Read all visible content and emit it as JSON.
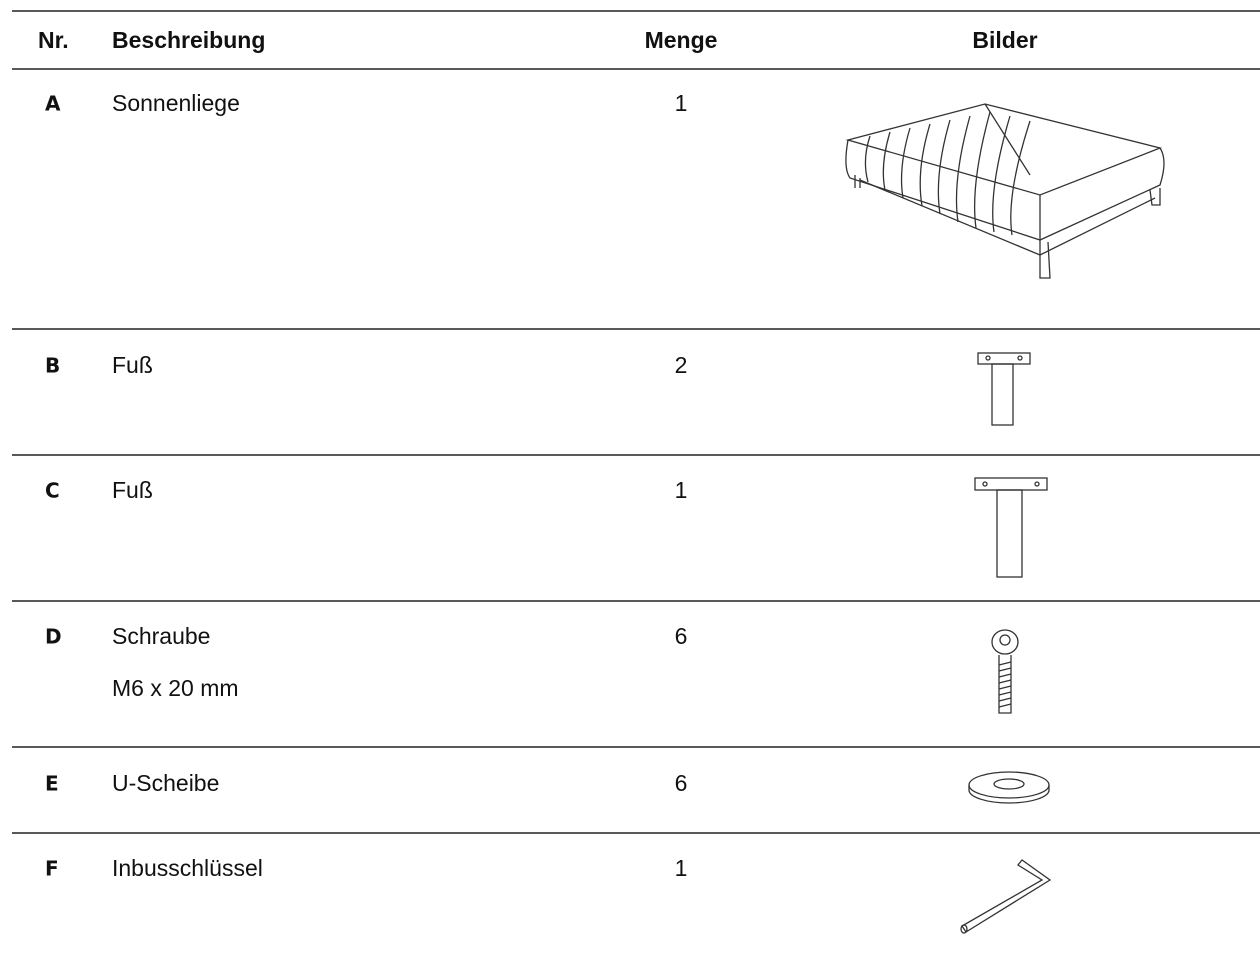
{
  "table": {
    "headers": [
      "Nr.",
      "Beschreibung",
      "Menge",
      "Bilder"
    ],
    "rows": [
      {
        "nr": "A",
        "description": [
          "Sonnenliege"
        ],
        "quantity": 1
      },
      {
        "nr": "B",
        "description": [
          "Fuß"
        ],
        "quantity": 2
      },
      {
        "nr": "C",
        "description": [
          "Fuß"
        ],
        "quantity": 1
      },
      {
        "nr": "D",
        "description": [
          "Schraube",
          "M6 x 20 mm"
        ],
        "quantity": 6
      },
      {
        "nr": "E",
        "description": [
          "U-Scheibe"
        ],
        "quantity": 6
      },
      {
        "nr": "F",
        "description": [
          "Inbusschlüssel"
        ],
        "quantity": 1
      }
    ]
  }
}
